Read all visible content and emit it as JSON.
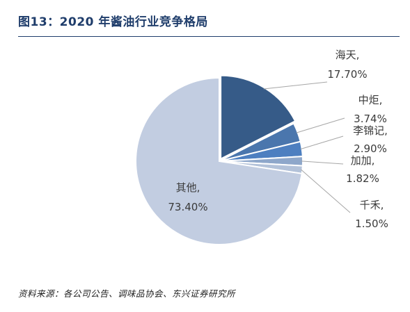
{
  "title": "图13：2020 年酱油行业竞争格局",
  "source": "资料来源：各公司公告、调味品协会、东兴证券研究所",
  "chart_data": {
    "type": "pie",
    "start_angle_deg": 90,
    "direction": "clockwise",
    "slices": [
      {
        "name": "海天,",
        "value": 17.7,
        "label": "17.70%",
        "color": "#365b88"
      },
      {
        "name": "中炬,",
        "value": 3.74,
        "label": "3.74%",
        "color": "#4a76ad"
      },
      {
        "name": "李锦记,",
        "value": 2.9,
        "label": "2.90%",
        "color": "#4d7fc0"
      },
      {
        "name": "加加,",
        "value": 1.82,
        "label": "1.82%",
        "color": "#8ea7ca"
      },
      {
        "name": "千禾,",
        "value": 1.5,
        "label": "1.50%",
        "color": "#b3c2d9"
      },
      {
        "name": "其他,",
        "value": 73.4,
        "label": "73.40%",
        "color": "#c2cde1"
      }
    ]
  }
}
